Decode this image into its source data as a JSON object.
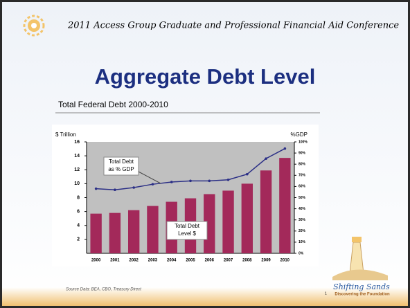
{
  "slide": {
    "header": "2011 Access Group Graduate and Professional Financial Aid Conference",
    "title": "Aggregate Debt Level",
    "source": "Source Data: BEA, CBO, Treasury Direct",
    "page_number": "1",
    "logo": [
      "Shifting Sands",
      "Discovering the Foundation"
    ]
  },
  "chart_data": {
    "type": "bar",
    "title": "Total Federal Debt 2000-2010",
    "y_label": "$ Trillion",
    "y2_label": "%GDP",
    "categories": [
      "2000",
      "2001",
      "2002",
      "2003",
      "2004",
      "2005",
      "2006",
      "2007",
      "2008",
      "2009",
      "2010"
    ],
    "series": [
      {
        "name": "Total Debt Level $",
        "type": "bar",
        "color": "#a3295a",
        "values": [
          5.7,
          5.8,
          6.2,
          6.8,
          7.4,
          7.9,
          8.5,
          9.0,
          10.0,
          11.9,
          13.7
        ]
      },
      {
        "name": "Total Debt as % GDP",
        "type": "line",
        "axis": "y2",
        "color": "#2b2f86",
        "values": [
          58,
          57,
          59,
          62,
          64,
          65,
          65,
          66,
          71,
          85,
          94
        ]
      }
    ],
    "annotations": [
      [
        "Total Debt",
        "as % GDP"
      ],
      [
        "Total Debt",
        "Level $"
      ]
    ],
    "ylim": [
      0,
      16
    ],
    "yticks": [
      2,
      4,
      6,
      8,
      10,
      12,
      14,
      16
    ],
    "y2lim": [
      0,
      100
    ],
    "y2ticks": [
      {
        "value": 0,
        "label": "0%"
      },
      {
        "value": 10,
        "label": "10%"
      },
      {
        "value": 20,
        "label": "20%"
      },
      {
        "value": 30,
        "label": "30%"
      },
      {
        "value": 40,
        "label": "40%"
      },
      {
        "value": 50,
        "label": "50%"
      },
      {
        "value": 60,
        "label": "60%"
      },
      {
        "value": 70,
        "label": "70%"
      },
      {
        "value": 80,
        "label": "80%"
      },
      {
        "value": 90,
        "label": "90%"
      },
      {
        "value": 100,
        "label": "100%"
      }
    ]
  }
}
